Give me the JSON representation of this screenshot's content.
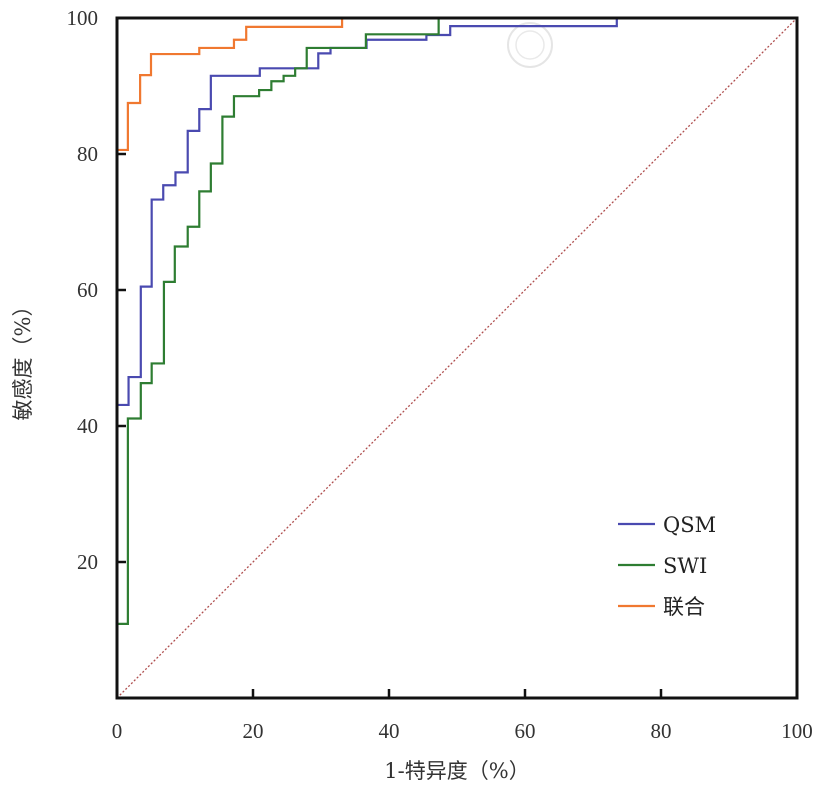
{
  "chart_data": {
    "type": "line",
    "xlabel": "1-特异度（%）",
    "ylabel": "敏感度（%）",
    "xlim": [
      0,
      100
    ],
    "ylim": [
      0,
      100
    ],
    "xticks": [
      "0",
      "20",
      "40",
      "60",
      "80",
      "100"
    ],
    "yticks": [
      "20",
      "40",
      "60",
      "80",
      "100"
    ],
    "grid": false,
    "legend_position": "bottom-right",
    "reference_line": {
      "from": [
        0,
        0
      ],
      "to": [
        100,
        100
      ],
      "color": "#b05050",
      "style": "dotted"
    },
    "series": [
      {
        "name": "QSM",
        "color": "#4a4ab0",
        "step": true,
        "points": [
          [
            0,
            43.1
          ],
          [
            1.7,
            47.2
          ],
          [
            3.5,
            60.5
          ],
          [
            5.1,
            73.3
          ],
          [
            6.8,
            75.4
          ],
          [
            8.6,
            77.3
          ],
          [
            10.4,
            83.4
          ],
          [
            12.1,
            86.6
          ],
          [
            13.8,
            91.5
          ],
          [
            21.0,
            92.6
          ],
          [
            29.6,
            94.8
          ],
          [
            31.4,
            95.6
          ],
          [
            36.7,
            96.8
          ],
          [
            45.5,
            97.5
          ],
          [
            49.0,
            98.8
          ],
          [
            73.5,
            100
          ]
        ]
      },
      {
        "name": "SWI",
        "color": "#2e7d32",
        "step": true,
        "points": [
          [
            0,
            10.9
          ],
          [
            1.6,
            41.1
          ],
          [
            3.5,
            46.3
          ],
          [
            5.1,
            49.2
          ],
          [
            6.9,
            61.2
          ],
          [
            8.5,
            66.4
          ],
          [
            10.4,
            69.3
          ],
          [
            12.1,
            74.5
          ],
          [
            13.8,
            78.6
          ],
          [
            15.5,
            85.5
          ],
          [
            17.2,
            88.5
          ],
          [
            20.9,
            89.4
          ],
          [
            22.7,
            90.7
          ],
          [
            24.5,
            91.5
          ],
          [
            26.2,
            92.6
          ],
          [
            27.9,
            95.6
          ],
          [
            36.6,
            97.6
          ],
          [
            47.3,
            100
          ]
        ]
      },
      {
        "name": "联合",
        "color": "#f07830",
        "step": true,
        "points": [
          [
            0,
            80.6
          ],
          [
            1.6,
            87.5
          ],
          [
            3.4,
            91.6
          ],
          [
            5.0,
            94.7
          ],
          [
            12.1,
            95.6
          ],
          [
            17.2,
            96.8
          ],
          [
            19.0,
            98.7
          ],
          [
            33.1,
            100
          ]
        ]
      }
    ]
  }
}
